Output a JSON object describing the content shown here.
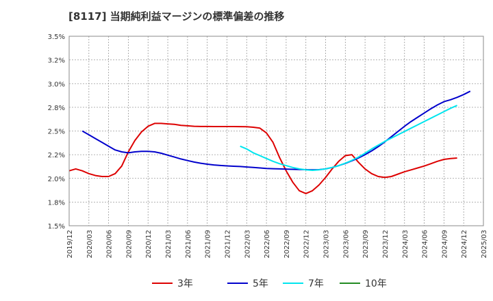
{
  "chart_data": {
    "type": "line",
    "title": "[8117]  当期純利益マージンの標準偏差の推移",
    "xlabel": "",
    "ylabel": "",
    "ylim": [
      1.5,
      3.5
    ],
    "y_ticks": [
      "3.5%",
      "3.2%",
      "3.0%",
      "2.8%",
      "2.5%",
      "2.2%",
      "2.0%",
      "1.8%",
      "1.5%"
    ],
    "y_tick_values": [
      3.5,
      3.25,
      3.0,
      2.75,
      2.5,
      2.25,
      2.0,
      1.75,
      1.5
    ],
    "x_ticks": [
      "2019/12",
      "2020/03",
      "2020/06",
      "2020/09",
      "2020/12",
      "2021/03",
      "2021/06",
      "2021/09",
      "2021/12",
      "2022/03",
      "2022/06",
      "2022/09",
      "2022/12",
      "2023/03",
      "2023/06",
      "2023/09",
      "2023/12",
      "2024/03",
      "2024/06",
      "2024/09",
      "2024/12",
      "2025/03"
    ],
    "grid": true,
    "legend_position": "bottom",
    "series": [
      {
        "name": "3年",
        "color": "#dd0000",
        "start_index": 0,
        "values": [
          2.08,
          2.1,
          2.08,
          2.05,
          2.03,
          2.02,
          2.02,
          2.05,
          2.13,
          2.28,
          2.4,
          2.49,
          2.55,
          2.58,
          2.58,
          2.575,
          2.57,
          2.56,
          2.555,
          2.55,
          2.548,
          2.548,
          2.547,
          2.547,
          2.547,
          2.547,
          2.546,
          2.545,
          2.54,
          2.53,
          2.48,
          2.38,
          2.22,
          2.08,
          1.96,
          1.87,
          1.84,
          1.87,
          1.93,
          2.01,
          2.1,
          2.18,
          2.24,
          2.25,
          2.17,
          2.1,
          2.05,
          2.02,
          2.01,
          2.02,
          2.045,
          2.07,
          2.09,
          2.11,
          2.13,
          2.155,
          2.18,
          2.2,
          2.21,
          2.215
        ]
      },
      {
        "name": "5年",
        "color": "#0000cc",
        "start_index": 2,
        "values": [
          2.5,
          2.46,
          2.42,
          2.38,
          2.34,
          2.3,
          2.28,
          2.27,
          2.28,
          2.285,
          2.285,
          2.28,
          2.265,
          2.245,
          2.225,
          2.205,
          2.188,
          2.172,
          2.16,
          2.15,
          2.142,
          2.136,
          2.132,
          2.128,
          2.125,
          2.12,
          2.115,
          2.11,
          2.105,
          2.102,
          2.1,
          2.098,
          2.096,
          2.094,
          2.092,
          2.09,
          2.092,
          2.1,
          2.115,
          2.135,
          2.158,
          2.185,
          2.215,
          2.25,
          2.29,
          2.335,
          2.385,
          2.44,
          2.495,
          2.55,
          2.6,
          2.645,
          2.69,
          2.735,
          2.775,
          2.81,
          2.83,
          2.855,
          2.885,
          2.92
        ]
      },
      {
        "name": "7年",
        "color": "#00e5ee",
        "start_index": 26,
        "values": [
          2.34,
          2.31,
          2.27,
          2.24,
          2.21,
          2.18,
          2.155,
          2.135,
          2.115,
          2.1,
          2.09,
          2.085,
          2.09,
          2.1,
          2.115,
          2.135,
          2.16,
          2.19,
          2.225,
          2.265,
          2.31,
          2.35,
          2.39,
          2.425,
          2.46,
          2.495,
          2.53,
          2.565,
          2.6,
          2.635,
          2.67,
          2.705,
          2.74,
          2.77
        ]
      },
      {
        "name": "10年",
        "color": "#228b22",
        "start_index": 0,
        "values": []
      }
    ]
  }
}
